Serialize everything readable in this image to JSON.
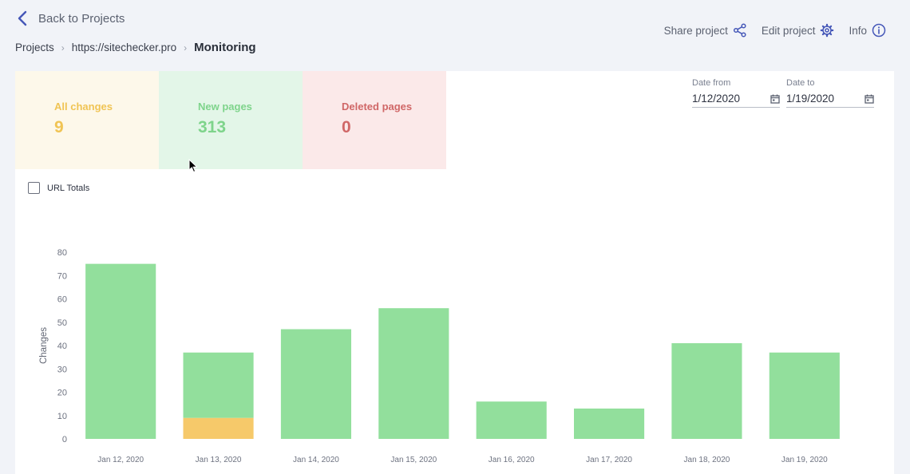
{
  "nav": {
    "back_label": "Back to Projects"
  },
  "breadcrumb": {
    "items": [
      "Projects",
      "https://sitechecker.pro",
      "Monitoring"
    ]
  },
  "actions": {
    "share": "Share project",
    "edit": "Edit project",
    "info": "Info"
  },
  "stats": {
    "all_changes": {
      "label": "All changes",
      "value": "9"
    },
    "new_pages": {
      "label": "New pages",
      "value": "313"
    },
    "deleted_pages": {
      "label": "Deleted pages",
      "value": "0"
    }
  },
  "dates": {
    "from_label": "Date from",
    "from_value": "1/12/2020",
    "to_label": "Date to",
    "to_value": "1/19/2020"
  },
  "url_totals": {
    "label": "URL Totals",
    "checked": false
  },
  "colors": {
    "accent": "#4557b8",
    "new_pages": "#92df9c",
    "all_changes": "#f6c96a",
    "deleted_pages": "#d06767"
  },
  "chart_data": {
    "type": "bar",
    "stacked": true,
    "categories": [
      "Jan 12, 2020",
      "Jan 13, 2020",
      "Jan 14, 2020",
      "Jan 15, 2020",
      "Jan 16, 2020",
      "Jan 17, 2020",
      "Jan 18, 2020",
      "Jan 19, 2020"
    ],
    "series": [
      {
        "color": "#f6c96a",
        "values": [
          0,
          9,
          0,
          0,
          0,
          0,
          0,
          0
        ]
      },
      {
        "color": "#92df9c",
        "values": [
          75,
          28,
          47,
          56,
          16,
          13,
          41,
          37
        ]
      }
    ],
    "ylabel": "Changes",
    "ylim": [
      0,
      80
    ],
    "yticks": [
      0,
      10,
      20,
      30,
      40,
      50,
      60,
      70,
      80
    ],
    "grid": false,
    "legend": "none"
  }
}
